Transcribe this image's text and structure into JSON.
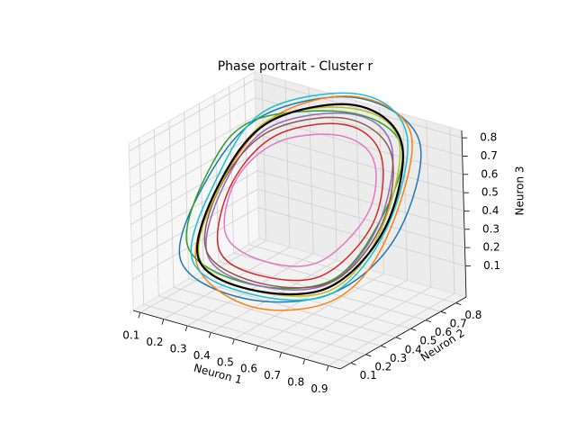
{
  "chart_data": {
    "type": "line3d",
    "title": "Phase portrait - Cluster r",
    "xlabel": "Neuron 1",
    "ylabel": "Neuron 2",
    "zlabel": "Neuron 3",
    "xlim": [
      0.07,
      0.95
    ],
    "ylim": [
      0.03,
      0.87
    ],
    "zlim": [
      -0.07,
      0.84
    ],
    "xticks": [
      0.1,
      0.2,
      0.3,
      0.4,
      0.5,
      0.6,
      0.7,
      0.8,
      0.9
    ],
    "yticks": [
      0.1,
      0.2,
      0.3,
      0.4,
      0.5,
      0.6,
      0.7,
      0.8
    ],
    "zticks": [
      0.1,
      0.2,
      0.3,
      0.4,
      0.5,
      0.6,
      0.7,
      0.8
    ],
    "grid": true,
    "series": [
      {
        "color": "#1f77b4",
        "x": [
          0.9,
          0.8,
          0.5,
          0.2,
          0.1,
          0.2,
          0.5,
          0.8
        ],
        "y": [
          0.5,
          0.82,
          0.88,
          0.72,
          0.5,
          0.15,
          0.1,
          0.22
        ],
        "z": [
          0.42,
          0.75,
          0.85,
          0.72,
          0.45,
          0.2,
          0.12,
          0.2
        ]
      },
      {
        "color": "#ff7f0e",
        "x": [
          0.88,
          0.78,
          0.48,
          0.22,
          0.14,
          0.25,
          0.55,
          0.82
        ],
        "y": [
          0.45,
          0.8,
          0.9,
          0.75,
          0.5,
          0.18,
          0.08,
          0.2
        ],
        "z": [
          0.4,
          0.78,
          0.84,
          0.7,
          0.4,
          0.18,
          0.1,
          0.18
        ]
      },
      {
        "color": "#2ca02c",
        "x": [
          0.84,
          0.75,
          0.5,
          0.18,
          0.1,
          0.2,
          0.5,
          0.78
        ],
        "y": [
          0.5,
          0.78,
          0.85,
          0.7,
          0.52,
          0.2,
          0.14,
          0.25
        ],
        "z": [
          0.5,
          0.72,
          0.78,
          0.7,
          0.5,
          0.25,
          0.18,
          0.25
        ]
      },
      {
        "color": "#d62728",
        "x": [
          0.8,
          0.7,
          0.5,
          0.28,
          0.2,
          0.3,
          0.5,
          0.72
        ],
        "y": [
          0.5,
          0.72,
          0.8,
          0.68,
          0.5,
          0.25,
          0.2,
          0.28
        ],
        "z": [
          0.45,
          0.68,
          0.74,
          0.66,
          0.45,
          0.25,
          0.2,
          0.24
        ]
      },
      {
        "color": "#9467bd",
        "x": [
          0.82,
          0.72,
          0.5,
          0.24,
          0.17,
          0.27,
          0.52,
          0.76
        ],
        "y": [
          0.5,
          0.76,
          0.84,
          0.7,
          0.5,
          0.22,
          0.16,
          0.26
        ],
        "z": [
          0.44,
          0.72,
          0.78,
          0.68,
          0.44,
          0.22,
          0.17,
          0.22
        ]
      },
      {
        "color": "#8c564b",
        "x": [
          0.83,
          0.72,
          0.48,
          0.24,
          0.16,
          0.27,
          0.54,
          0.78
        ],
        "y": [
          0.52,
          0.75,
          0.82,
          0.68,
          0.48,
          0.22,
          0.17,
          0.27
        ],
        "z": [
          0.46,
          0.7,
          0.76,
          0.66,
          0.42,
          0.23,
          0.18,
          0.24
        ]
      },
      {
        "color": "#e377c2",
        "x": [
          0.78,
          0.68,
          0.5,
          0.3,
          0.22,
          0.3,
          0.5,
          0.7
        ],
        "y": [
          0.5,
          0.7,
          0.76,
          0.66,
          0.5,
          0.3,
          0.25,
          0.3
        ],
        "z": [
          0.5,
          0.66,
          0.7,
          0.64,
          0.48,
          0.3,
          0.25,
          0.3
        ]
      },
      {
        "color": "#bcbd22",
        "x": [
          0.84,
          0.74,
          0.5,
          0.22,
          0.15,
          0.25,
          0.52,
          0.78
        ],
        "y": [
          0.48,
          0.78,
          0.86,
          0.72,
          0.5,
          0.2,
          0.14,
          0.24
        ],
        "z": [
          0.42,
          0.74,
          0.8,
          0.7,
          0.42,
          0.2,
          0.15,
          0.2
        ]
      },
      {
        "color": "#17becf",
        "x": [
          0.86,
          0.76,
          0.5,
          0.2,
          0.13,
          0.23,
          0.52,
          0.8
        ],
        "y": [
          0.5,
          0.8,
          0.9,
          0.74,
          0.52,
          0.18,
          0.12,
          0.22
        ],
        "z": [
          0.45,
          0.78,
          0.86,
          0.74,
          0.46,
          0.2,
          0.14,
          0.2
        ]
      },
      {
        "color": "#000000",
        "x": [
          0.85,
          0.75,
          0.5,
          0.23,
          0.15,
          0.25,
          0.5,
          0.77
        ],
        "y": [
          0.5,
          0.78,
          0.86,
          0.71,
          0.5,
          0.19,
          0.14,
          0.24
        ],
        "z": [
          0.44,
          0.74,
          0.82,
          0.7,
          0.44,
          0.21,
          0.15,
          0.21
        ]
      }
    ]
  }
}
